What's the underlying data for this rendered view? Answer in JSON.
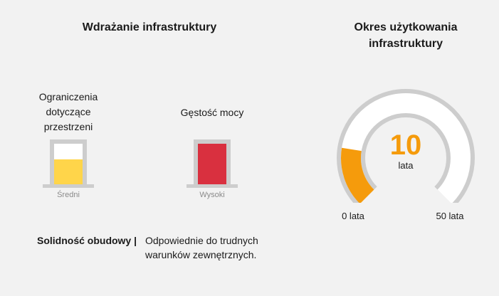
{
  "left_section": {
    "title": "Wdrażanie infrastruktury",
    "indicators": [
      {
        "label": "Ograniczenia dotyczące przestrzeni",
        "level_text": "Średni",
        "level_fraction": 0.62,
        "fill_color": "#ffd54a"
      },
      {
        "label": "Gęstość mocy",
        "level_text": "Wysoki",
        "level_fraction": 1.0,
        "fill_color": "#d9303f"
      }
    ],
    "robustness": {
      "label": "Solidność obudowy |",
      "value": "Odpowiednie do trudnych warunków zewnętrznych."
    }
  },
  "right_section": {
    "title": "Okres użytkowania infrastruktury",
    "gauge": {
      "value": "10",
      "unit": "lata",
      "min_label": "0 lata",
      "max_label": "50 lata",
      "min": 0,
      "max": 50,
      "current": 10,
      "accent_color": "#f59b0c",
      "track_color": "#cdcdcd"
    }
  }
}
